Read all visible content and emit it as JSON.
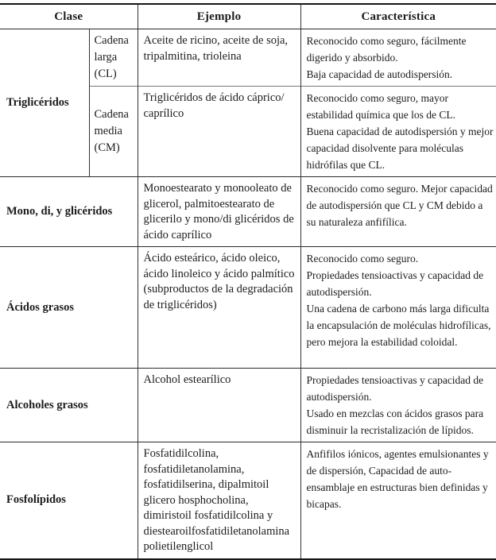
{
  "table": {
    "headers": {
      "clase": "Clase",
      "ejemplo": "Ejemplo",
      "caracteristica": "Característica"
    },
    "groups": [
      {
        "clase": "Triglicéridos",
        "subrows": [
          {
            "subclase": "Cadena larga (CL)",
            "ejemplo": "Aceite de ricino, aceite de soja, tripalmitina, trioleina",
            "caracteristica": "Reconocido como seguro, fácilmente digerido y absorbido.\nBaja capacidad de autodispersión."
          },
          {
            "subclase": "Cadena media (CM)",
            "ejemplo": "Triglicéridos de ácido cáprico/\ncaprílico",
            "caracteristica": "Reconocido como seguro, mayor estabilidad química que los de CL.\nBuena capacidad de autodispersión y mejor capacidad disolvente para moléculas hidrófilas que CL."
          }
        ]
      },
      {
        "clase": "Mono, di, y glicéridos",
        "ejemplo": "Monoestearato y monooleato de glicerol, palmitoestearato de glicerilo y mono/di glicéridos de ácido caprílico",
        "caracteristica": "Reconocido como seguro. Mejor capacidad de autodispersión que CL y CM debido a su naturaleza anfifílica."
      },
      {
        "clase": "Ácidos grasos",
        "ejemplo": "Ácido esteárico, ácido oleico, ácido linoleico y ácido palmítico (subproductos de la degradación de triglicéridos)",
        "caracteristica": "Reconocido como seguro.\nPropiedades tensioactivas y capacidad de autodispersión.\nUna cadena de carbono más larga dificulta la encapsulación de moléculas hidrofílicas, pero mejora la estabilidad coloidal."
      },
      {
        "clase": "Alcoholes grasos",
        "ejemplo": "Alcohol estearílico",
        "caracteristica": "Propiedades tensioactivas y capacidad de autodispersión.\nUsado en mezclas con ácidos grasos para disminuir la recristalización de lípidos."
      },
      {
        "clase": "Fosfolípidos",
        "ejemplo": "Fosfatidilcolina,\nfosfatidiletanolamina,\nfosfatidilserina, dipalmitoil\nglicero hosphocholina,\ndimiristoil fosfatidilcolina y\ndiestearoilfosfatidiletanolamina\npolietilenglicol",
        "caracteristica": "Anfifilos iónicos, agentes emulsionantes y de dispersión, Capacidad de auto-ensamblaje en estructuras bien definidas y bicapas."
      }
    ]
  }
}
